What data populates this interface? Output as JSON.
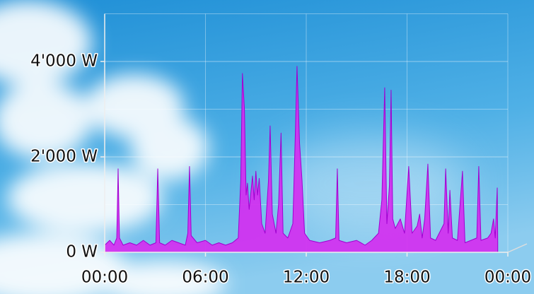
{
  "chart_data": {
    "type": "area",
    "x": [
      0,
      0.3,
      0.55,
      0.72,
      0.8,
      0.88,
      1.1,
      1.5,
      1.9,
      2.3,
      2.7,
      3.05,
      3.16,
      3.27,
      3.6,
      4,
      4.4,
      4.8,
      4.95,
      5.05,
      5.15,
      5.5,
      6,
      6.4,
      6.8,
      7.2,
      7.6,
      7.95,
      8.1,
      8.2,
      8.32,
      8.42,
      8.5,
      8.6,
      8.8,
      8.9,
      9,
      9.1,
      9.2,
      9.35,
      9.55,
      9.75,
      9.85,
      9.98,
      10.2,
      10.35,
      10.5,
      10.62,
      10.9,
      11.2,
      11.35,
      11.45,
      11.6,
      11.75,
      11.9,
      12.2,
      12.8,
      13.4,
      13.75,
      13.85,
      13.95,
      14.4,
      15,
      15.5,
      15.9,
      16.3,
      16.5,
      16.67,
      16.8,
      16.95,
      17.05,
      17.15,
      17.3,
      17.6,
      17.85,
      18.1,
      18.3,
      18.6,
      18.75,
      18.9,
      19.05,
      19.24,
      19.4,
      19.7,
      20.2,
      20.3,
      20.45,
      20.55,
      20.7,
      21,
      21.3,
      21.45,
      21.8,
      22.15,
      22.27,
      22.4,
      22.8,
      23,
      23.15,
      23.25,
      23.37,
      23.4
    ],
    "series": [
      {
        "color": "#d42ef0",
        "line_color": "#a000d0",
        "values": [
          150,
          250,
          150,
          300,
          1750,
          300,
          150,
          200,
          150,
          250,
          150,
          200,
          1750,
          200,
          150,
          250,
          200,
          150,
          400,
          1800,
          350,
          200,
          250,
          150,
          200,
          150,
          200,
          300,
          1500,
          3750,
          3000,
          1200,
          1450,
          900,
          1600,
          1100,
          1700,
          1200,
          1550,
          600,
          400,
          1500,
          2650,
          800,
          400,
          1000,
          2500,
          400,
          300,
          600,
          2500,
          3900,
          2300,
          1500,
          400,
          250,
          200,
          250,
          300,
          1750,
          250,
          200,
          250,
          150,
          250,
          400,
          1100,
          3450,
          600,
          1400,
          3400,
          700,
          500,
          700,
          400,
          1800,
          400,
          550,
          800,
          300,
          700,
          1850,
          300,
          250,
          600,
          1750,
          400,
          1300,
          300,
          250,
          1700,
          200,
          250,
          300,
          1800,
          250,
          300,
          400,
          700,
          300,
          1350,
          200
        ]
      }
    ],
    "xlim": [
      0,
      24
    ],
    "xticks": [
      {
        "value": 0,
        "label": "00:00"
      },
      {
        "value": 6,
        "label": "06:00"
      },
      {
        "value": 12,
        "label": "12:00"
      },
      {
        "value": 18,
        "label": "18:00"
      },
      {
        "value": 24,
        "label": "00:00"
      }
    ],
    "ylim": [
      0,
      5000
    ],
    "yticks": [
      {
        "value": 0,
        "label": "0 W"
      },
      {
        "value": 2000,
        "label": "2'000 W"
      },
      {
        "value": 4000,
        "label": "4'000 W"
      }
    ],
    "y_minor_grid": [
      1000,
      3000,
      5000
    ],
    "grid": true
  }
}
